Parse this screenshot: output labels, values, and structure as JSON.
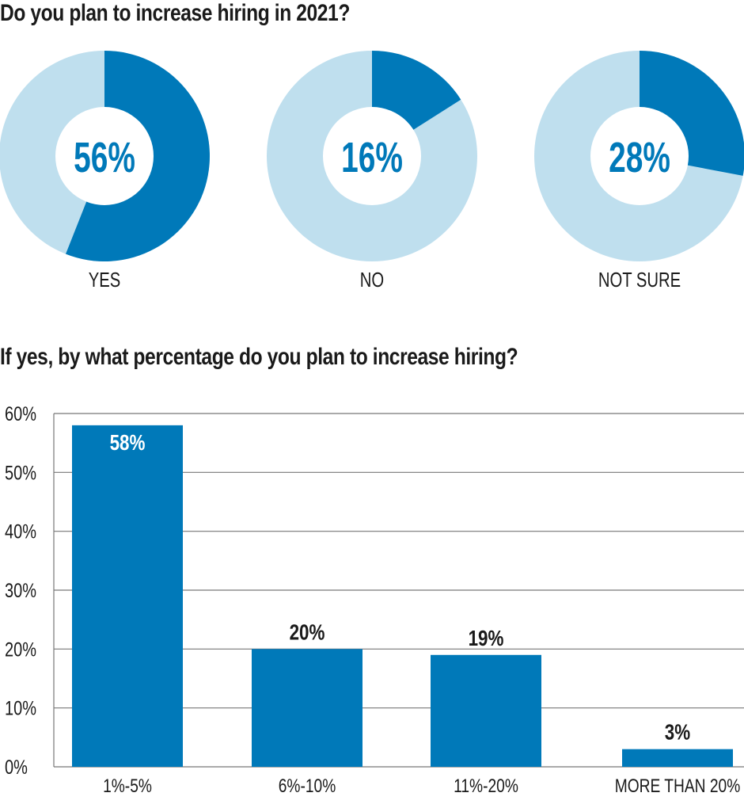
{
  "colors": {
    "primary": "#0079b9",
    "light": "#bfdfee",
    "grid": "#777777",
    "text": "#1a1a1a"
  },
  "chart_data": [
    {
      "type": "pie",
      "title": "Do you plan to increase hiring in 2021?",
      "charts": [
        {
          "label": "YES",
          "value": 56,
          "center_label": "56%"
        },
        {
          "label": "NO",
          "value": 16,
          "center_label": "16%"
        },
        {
          "label": "NOT SURE",
          "value": 28,
          "center_label": "28%"
        }
      ]
    },
    {
      "type": "bar",
      "title": "If yes, by what percentage do you plan to increase hiring?",
      "categories": [
        "1%-5%",
        "6%-10%",
        "11%-20%",
        "MORE THAN 20%"
      ],
      "values": [
        58,
        20,
        19,
        3
      ],
      "data_labels": [
        "58%",
        "20%",
        "19%",
        "3%"
      ],
      "ylim": [
        0,
        60
      ],
      "yticks": [
        "0%",
        "10%",
        "20%",
        "30%",
        "40%",
        "50%",
        "60%"
      ],
      "grid": true
    }
  ]
}
